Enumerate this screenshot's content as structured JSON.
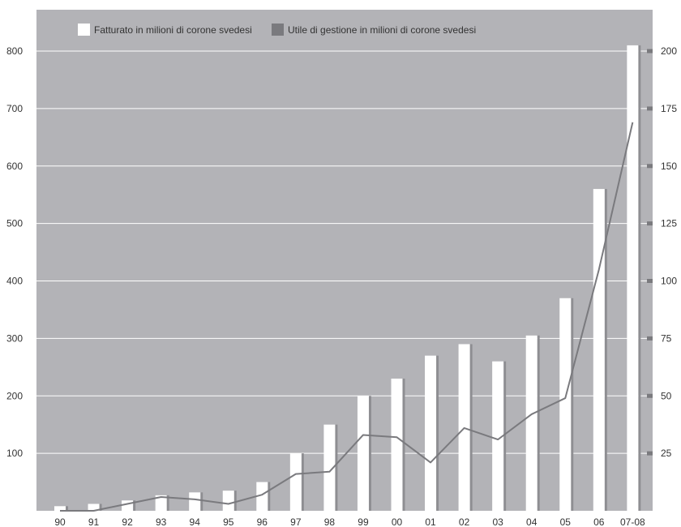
{
  "chart_data": {
    "type": "bar",
    "categories": [
      "90",
      "91",
      "92",
      "93",
      "94",
      "95",
      "96",
      "97",
      "98",
      "99",
      "00",
      "01",
      "02",
      "03",
      "04",
      "05",
      "06",
      "07-08"
    ],
    "series": [
      {
        "name": "Fatturato in milioni di corone svedesi",
        "type": "bar",
        "axis": "left",
        "values": [
          8,
          12,
          18,
          27,
          32,
          35,
          50,
          100,
          150,
          200,
          230,
          270,
          290,
          260,
          305,
          370,
          560,
          810
        ]
      },
      {
        "name": "Utile di gestione in milioni di corone svedesi",
        "type": "line",
        "axis": "right",
        "values": [
          0,
          0,
          3,
          6,
          5,
          3,
          7,
          16,
          17,
          33,
          32,
          21,
          36,
          31,
          42,
          49,
          105,
          169
        ]
      }
    ],
    "y_left": {
      "ticks": [
        100,
        200,
        300,
        400,
        500,
        600,
        700,
        800
      ],
      "lim": [
        0,
        800
      ]
    },
    "y_right": {
      "ticks": [
        25,
        50,
        75,
        100,
        125,
        150,
        175,
        200
      ],
      "lim": [
        0,
        200
      ]
    },
    "grid": true,
    "legend_position": "top-left",
    "colors": {
      "plot_background": "#b3b3b7",
      "bar": "#ffffff",
      "bar_shadow": "#8e8e92",
      "line": "#7a7a7e",
      "gridline": "#ffffff",
      "right_tick": "#7a7a7e",
      "legend_swatch_1": "#ffffff",
      "legend_swatch_2": "#7a7a7e"
    }
  }
}
